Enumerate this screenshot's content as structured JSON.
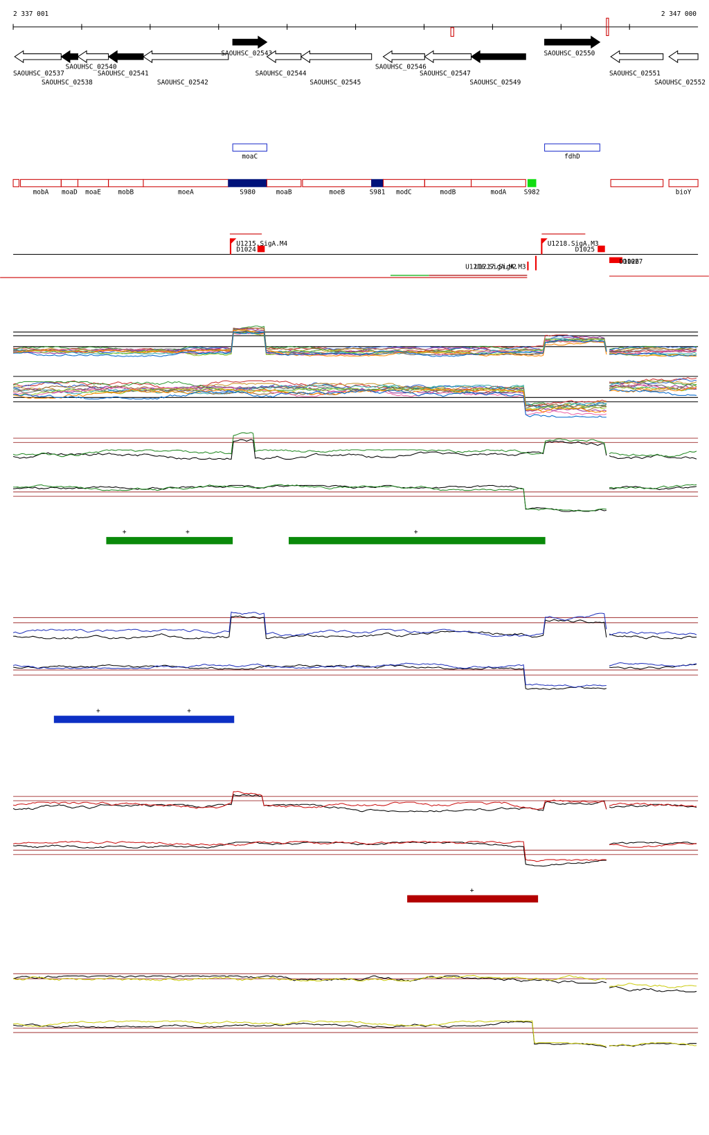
{
  "header": {
    "start": "2 337 001",
    "end": "2 347 000"
  },
  "genes": [
    "SAOUHSC_02537",
    "SAOUHSC_02538",
    "SAOUHSC_02540",
    "SAOUHSC_02541",
    "SAOUHSC_02542",
    "SAOUHSC_02543",
    "SAOUHSC_02544",
    "SAOUHSC_02545",
    "SAOUHSC_02546",
    "SAOUHSC_02547",
    "SAOUHSC_02549",
    "SAOUHSC_02550",
    "SAOUHSC_02551",
    "SAOUHSC_02552"
  ],
  "boxes": [
    "moaC",
    "fdhD"
  ],
  "features": [
    "mobA",
    "moaD",
    "moaE",
    "mobB",
    "moeA",
    "S980",
    "moaB",
    "moeB",
    "S981",
    "modC",
    "modB",
    "modA",
    "S982",
    "bioY"
  ],
  "promoters": [
    "U1215.SigA.M4",
    "D1024",
    "U1218.SigA.M3",
    "D1025",
    "U1216.SigA.M2",
    "U1217.SigA.M3",
    "D1026",
    "D1027"
  ],
  "tracks": [
    {
      "plus": [
        "+",
        "+",
        "+"
      ]
    },
    {
      "plus": [
        "+",
        "+"
      ]
    },
    {
      "plus": [
        "+"
      ]
    }
  ]
}
